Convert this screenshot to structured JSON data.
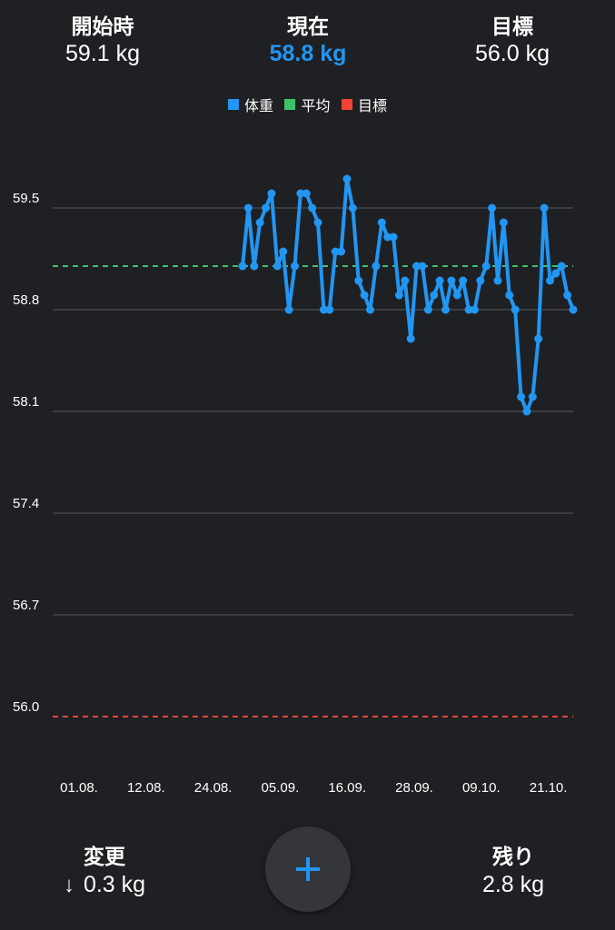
{
  "stats": {
    "start": {
      "label": "開始時",
      "value": "59.1 kg"
    },
    "current": {
      "label": "現在",
      "value": "58.8 kg"
    },
    "goal": {
      "label": "目標",
      "value": "56.0 kg"
    }
  },
  "legend": [
    {
      "label": "体重",
      "color": "#2196f3"
    },
    {
      "label": "平均",
      "color": "#3cc36a"
    },
    {
      "label": "目標",
      "color": "#f44336"
    }
  ],
  "chart_data": {
    "type": "line",
    "ylim": [
      55.7,
      60.0
    ],
    "y_ticks": [
      "59.5",
      "58.8",
      "58.1",
      "57.4",
      "56.7",
      "56.0"
    ],
    "x_ticks": [
      "01.08.",
      "12.08.",
      "24.08.",
      "05.09.",
      "16.09.",
      "28.09.",
      "09.10.",
      "21.10."
    ],
    "series": [
      {
        "name": "体重",
        "color": "#2196f3",
        "values": [
          59.1,
          59.5,
          59.1,
          59.4,
          59.5,
          59.6,
          59.1,
          59.2,
          58.8,
          59.1,
          59.6,
          59.6,
          59.5,
          59.4,
          58.8,
          58.8,
          59.2,
          59.2,
          59.7,
          59.5,
          59.0,
          58.9,
          58.8,
          59.1,
          59.4,
          59.3,
          59.3,
          58.9,
          59.0,
          58.6,
          59.1,
          59.1,
          58.8,
          58.9,
          59.0,
          58.8,
          59.0,
          58.9,
          59.0,
          58.8,
          58.8,
          59.0,
          59.1,
          59.5,
          59.0,
          59.4,
          58.9,
          58.8,
          58.2,
          58.1,
          58.2,
          58.6,
          59.5,
          59.0,
          59.05,
          59.1,
          58.9,
          58.8
        ]
      },
      {
        "name": "平均",
        "color": "#3cc36a",
        "values": [
          59.1
        ]
      },
      {
        "name": "目標",
        "color": "#f44336",
        "values": [
          56.0
        ]
      }
    ],
    "grid": true,
    "legend_position": "top"
  },
  "bottom": {
    "change": {
      "label": "変更",
      "arrow": "↓",
      "value": "0.3 kg"
    },
    "remaining": {
      "label": "残り",
      "value": "2.8 kg"
    },
    "add_icon": "plus-icon"
  }
}
